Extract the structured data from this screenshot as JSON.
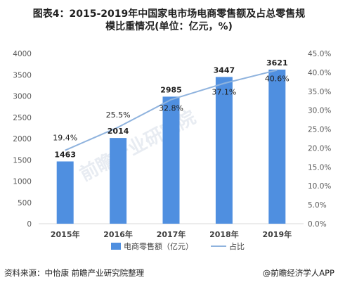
{
  "title_line1": "图表4：2015-2019年中国家电市场电商零售额及占总零售规",
  "title_line2": "模比重情况(单位：亿元，%)",
  "source_left": "资料来源：中怡康 前瞻产业研究院整理",
  "source_right": "@前瞻经济学人APP",
  "watermark": "前瞻产业研究院",
  "colors": {
    "bar": "#4f8fe0",
    "line": "#8fb3de",
    "axis": "#d9d9d9"
  },
  "chart_data": {
    "type": "bar",
    "categories": [
      "2015年",
      "2016年",
      "2017年",
      "2018年",
      "2019年"
    ],
    "series": [
      {
        "name": "电商零售额（亿元）",
        "type": "bar",
        "axis": "left",
        "values": [
          1463,
          2014,
          2985,
          3447,
          3621
        ],
        "labels": [
          "1463",
          "2014",
          "2985",
          "3447",
          "3621"
        ]
      },
      {
        "name": "占比",
        "type": "line",
        "axis": "right",
        "values": [
          19.4,
          25.5,
          32.8,
          37.1,
          40.6
        ],
        "labels": [
          "19.4%",
          "25.5%",
          "32.8%",
          "37.1%",
          "40.6%"
        ]
      }
    ],
    "ylim_left": [
      0,
      4000
    ],
    "yticks_left": [
      "0",
      "500",
      "1000",
      "1500",
      "2000",
      "2500",
      "3000",
      "3500",
      "4000"
    ],
    "ylim_right": [
      0,
      45
    ],
    "yticks_right": [
      "0.0%",
      "5.0%",
      "10.0%",
      "15.0%",
      "20.0%",
      "25.0%",
      "30.0%",
      "35.0%",
      "40.0%",
      "45.0%"
    ],
    "legend_position": "bottom",
    "grid": false
  }
}
